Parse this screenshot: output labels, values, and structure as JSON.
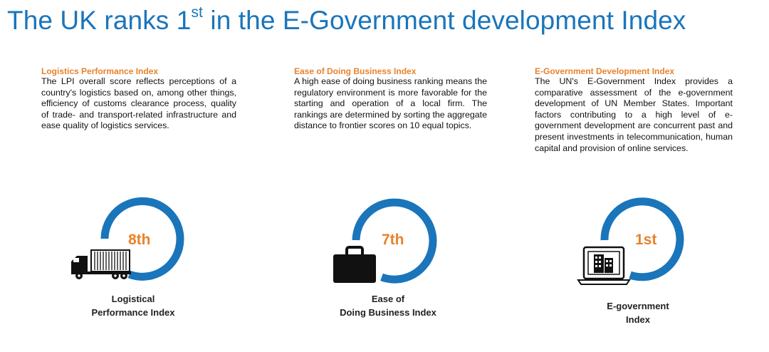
{
  "title": {
    "prefix": "The UK ranks 1",
    "sup": "st",
    "suffix": " in the E-Government development Index"
  },
  "columns": [
    {
      "heading": "Logistics Performance Index",
      "body": "The LPI overall score reflects perceptions of a country's logistics based on, among other things, efficiency of customs clearance process, quality of trade- and transport-related infrastructure and ease quality of logistics services."
    },
    {
      "heading": "Ease of Doing Business Index",
      "body": "A high ease of doing business ranking means the regulatory environment is more favorable for the starting and operation of a local firm. The rankings are determined by sorting the aggregate distance to frontier scores on 10 equal topics."
    },
    {
      "heading": "E-Government Development Index",
      "body": "The UN's E-Government Index provides a comparative assessment of the e-government development of UN Member States. Important factors contributing to a high level of e-government development are concurrent past and present investments in telecommunication, human capital and provision of online services."
    }
  ],
  "rankings": [
    {
      "rank": "8th",
      "icon": "truck-icon",
      "caption_line1": "Logistical",
      "caption_line2": "Performance Index"
    },
    {
      "rank": "7th",
      "icon": "briefcase-icon",
      "caption_line1": "Ease of",
      "caption_line2": "Doing Business Index"
    },
    {
      "rank": "1st",
      "icon": "laptop-icon",
      "caption_line1": "E-government",
      "caption_line2": "Index"
    }
  ],
  "colors": {
    "title": "#1a75bb",
    "accent": "#e8822b",
    "arc": "#1a75bb"
  }
}
